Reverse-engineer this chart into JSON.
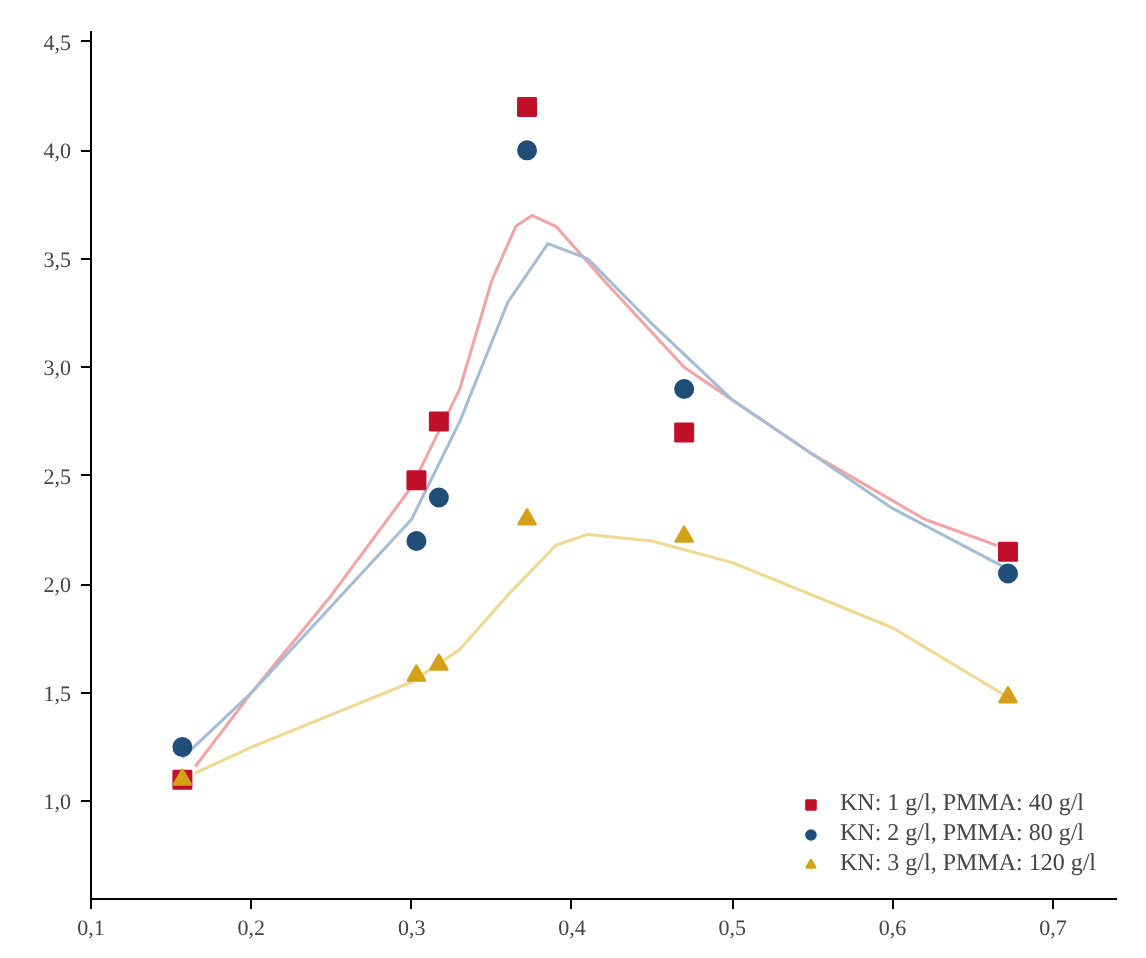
{
  "chart_data": {
    "type": "scatter",
    "xlim": [
      0.1,
      0.74
    ],
    "ylim": [
      0.55,
      4.55
    ],
    "xticks": [
      {
        "value": 0.1,
        "label": "0,1"
      },
      {
        "value": 0.2,
        "label": "0,2"
      },
      {
        "value": 0.3,
        "label": "0,3"
      },
      {
        "value": 0.4,
        "label": "0,4"
      },
      {
        "value": 0.5,
        "label": "0,5"
      },
      {
        "value": 0.6,
        "label": "0,6"
      },
      {
        "value": 0.7,
        "label": "0,7"
      }
    ],
    "yticks": [
      {
        "value": 1.0,
        "label": "1,0"
      },
      {
        "value": 1.5,
        "label": "1,5"
      },
      {
        "value": 2.0,
        "label": "2,0"
      },
      {
        "value": 2.5,
        "label": "2,5"
      },
      {
        "value": 3.0,
        "label": "3,0"
      },
      {
        "value": 3.5,
        "label": "3,5"
      },
      {
        "value": 4.0,
        "label": "4,0"
      },
      {
        "value": 4.5,
        "label": "4,5"
      }
    ],
    "grid": false,
    "legend": "bottom right",
    "series": [
      {
        "type": "line",
        "color": "#f2a4a4",
        "marker": "none",
        "x": [
          0.165,
          0.2,
          0.25,
          0.3,
          0.33,
          0.35,
          0.365,
          0.375,
          0.39,
          0.42,
          0.47,
          0.55,
          0.62,
          0.665
        ],
        "values": [
          1.16,
          1.5,
          1.95,
          2.45,
          2.9,
          3.4,
          3.65,
          3.7,
          3.65,
          3.4,
          3.0,
          2.6,
          2.3,
          2.18
        ]
      },
      {
        "type": "line",
        "color": "#a4bcd8",
        "marker": "none",
        "x": [
          0.157,
          0.2,
          0.25,
          0.3,
          0.33,
          0.36,
          0.385,
          0.41,
          0.45,
          0.5,
          0.6,
          0.672
        ],
        "values": [
          1.2,
          1.5,
          1.9,
          2.3,
          2.75,
          3.3,
          3.57,
          3.5,
          3.2,
          2.85,
          2.35,
          2.07
        ]
      },
      {
        "type": "line",
        "color": "#f0d890",
        "marker": "none",
        "x": [
          0.165,
          0.2,
          0.25,
          0.3,
          0.33,
          0.36,
          0.39,
          0.41,
          0.45,
          0.5,
          0.6,
          0.672
        ],
        "values": [
          1.13,
          1.25,
          1.4,
          1.55,
          1.7,
          1.95,
          2.18,
          2.23,
          2.2,
          2.1,
          1.8,
          1.48
        ]
      },
      {
        "name": "KN: 1 g/l, PMMA: 40 g/l",
        "color": "#c0102a",
        "marker": "square",
        "x": [
          0.157,
          0.303,
          0.317,
          0.372,
          0.47,
          0.672
        ],
        "values": [
          1.1,
          2.48,
          2.75,
          4.2,
          2.7,
          2.15
        ]
      },
      {
        "name": "KN: 2 g/l, PMMA: 80 g/l",
        "color": "#1f4e79",
        "marker": "circle",
        "x": [
          0.157,
          0.303,
          0.317,
          0.372,
          0.47,
          0.672
        ],
        "values": [
          1.25,
          2.2,
          2.4,
          4.0,
          2.9,
          2.05
        ]
      },
      {
        "name": "KN: 3 g/l, PMMA: 120 g/l",
        "color": "#d4a017",
        "marker": "triangle",
        "x": [
          0.157,
          0.303,
          0.317,
          0.372,
          0.47,
          0.672
        ],
        "values": [
          1.1,
          1.58,
          1.63,
          2.3,
          2.22,
          1.48
        ]
      }
    ]
  }
}
